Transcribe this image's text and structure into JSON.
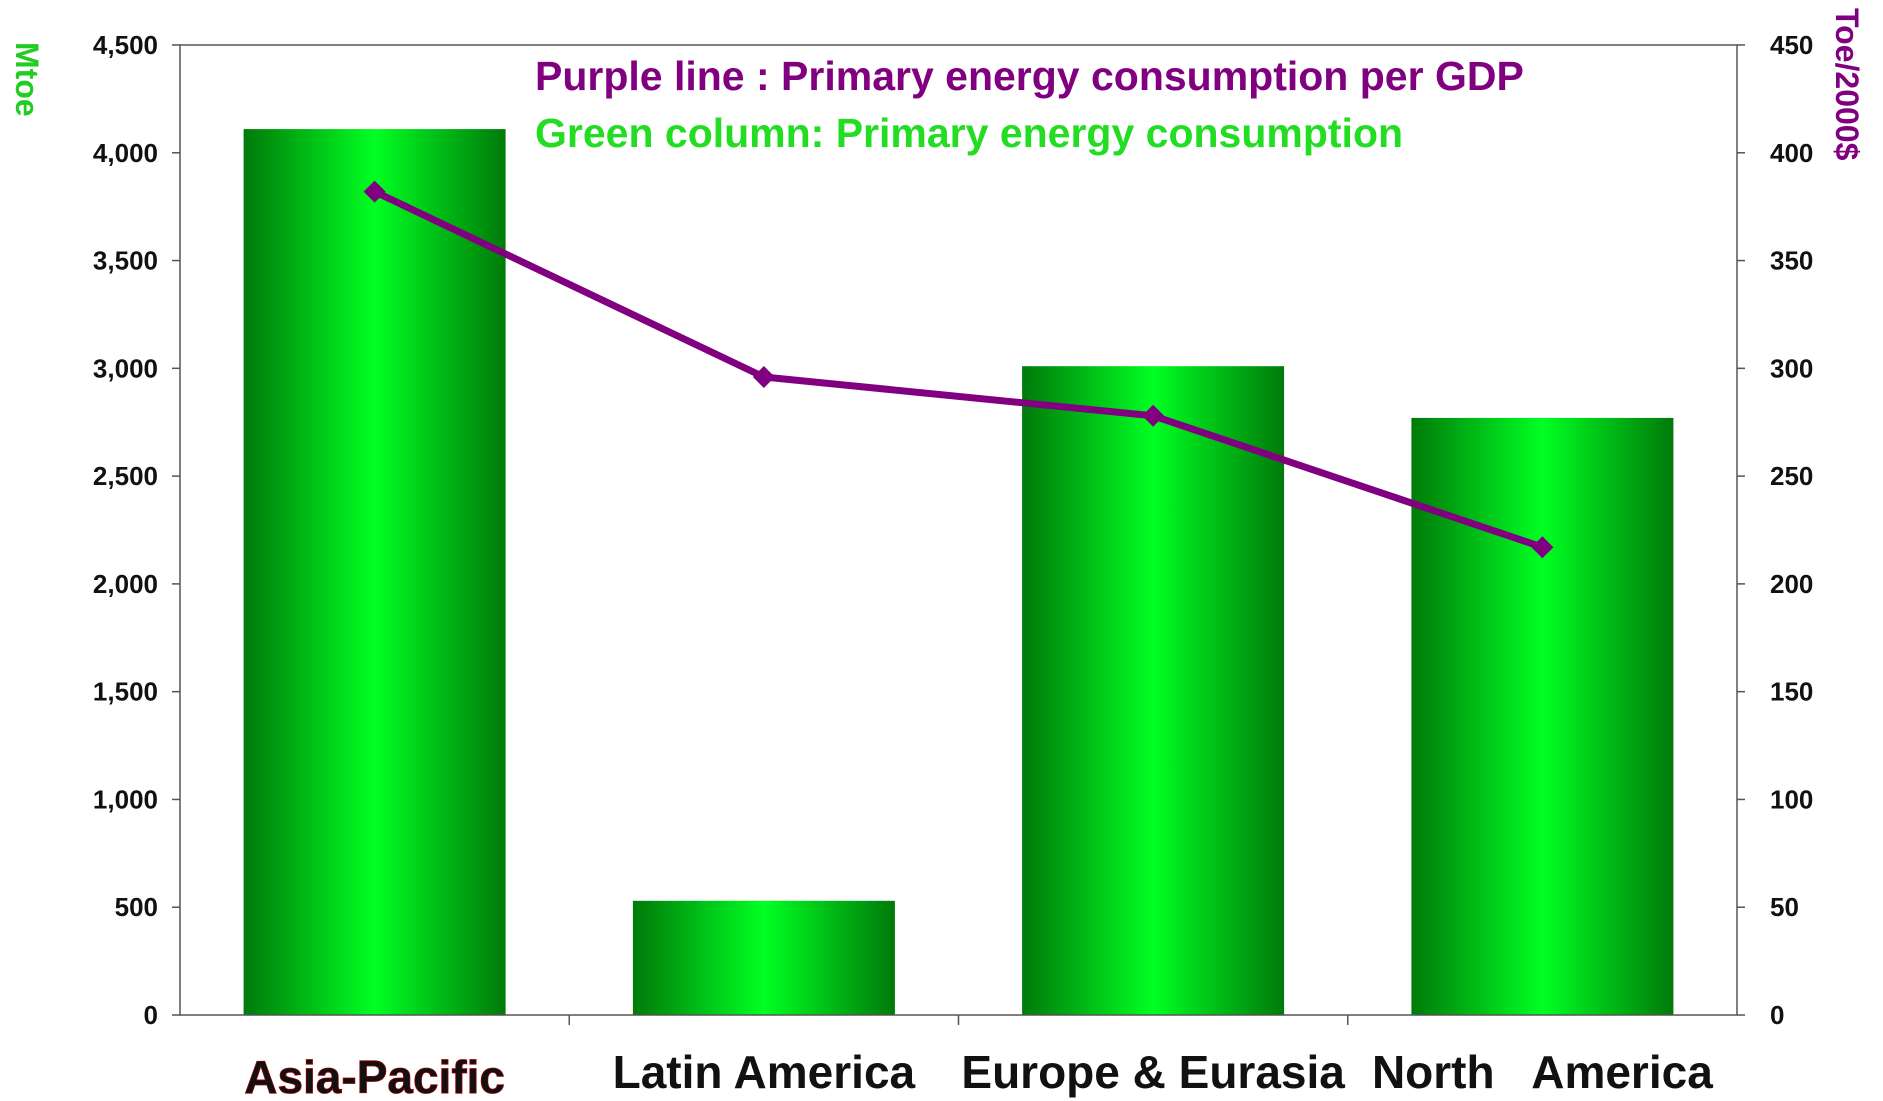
{
  "chart_data": {
    "type": "bar",
    "categories": [
      "Asia-Pacific",
      "Latin America",
      "Europe & Eurasia",
      "North   America"
    ],
    "highlight_category": "Asia-Pacific",
    "series": [
      {
        "name": "Green column: Primary energy consumption",
        "kind": "bar",
        "axis": "left",
        "values": [
          4110,
          530,
          3010,
          2770
        ]
      },
      {
        "name": "Purple line : Primary energy consumption per GDP",
        "kind": "line",
        "axis": "right",
        "values": [
          382,
          296,
          278,
          217
        ]
      }
    ],
    "ylabel": "Mtoe",
    "y2label": "Toe/2000$",
    "ylim": [
      0,
      4500
    ],
    "y2lim": [
      0,
      450
    ],
    "yticks": [
      "0",
      "500",
      "1,000",
      "1,500",
      "2,000",
      "2,500",
      "3,000",
      "3,500",
      "4,000",
      "4,500"
    ],
    "y2ticks": [
      "0",
      "50",
      "100",
      "150",
      "200",
      "250",
      "300",
      "350",
      "400",
      "450"
    ],
    "grid": false,
    "legend_position": "top-center"
  },
  "colors": {
    "bar_light": "#00ff22",
    "bar_dark": "#007a0a",
    "line": "#800080",
    "left_axis_title": "#22cc22",
    "right_axis_title": "#800080",
    "highlight_label": "#ff0000",
    "legend_line": "#800080",
    "legend_bar": "#22dd22"
  }
}
